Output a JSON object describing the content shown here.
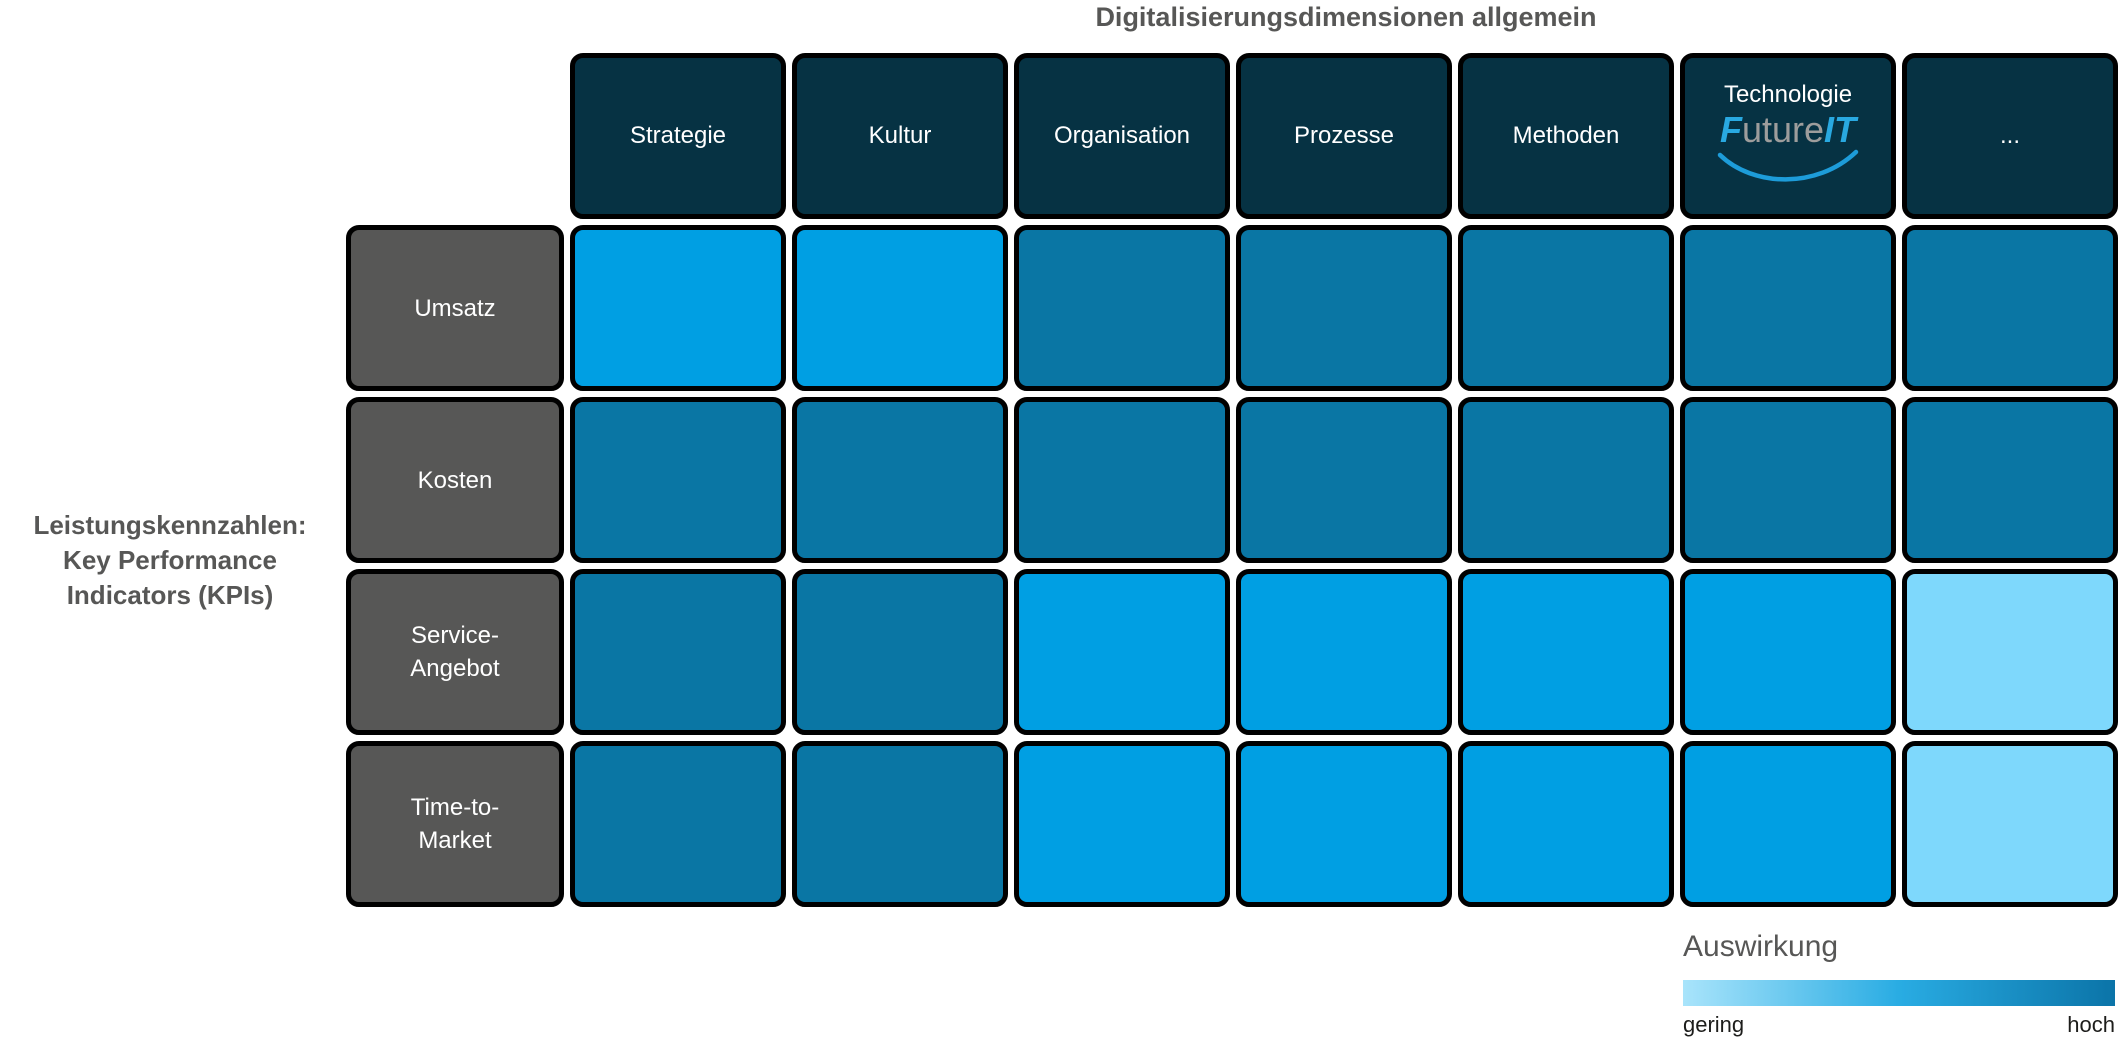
{
  "title": "Digitalisierungsdimensionen allgemein",
  "left_axis_label": {
    "lines": [
      "Leistungskennzahlen:",
      "Key Performance",
      "Indicators (KPIs)"
    ]
  },
  "columns": [
    {
      "label": "Strategie"
    },
    {
      "label": "Kultur"
    },
    {
      "label": "Organisation"
    },
    {
      "label": "Prozesse"
    },
    {
      "label": "Methoden"
    },
    {
      "label": "Technologie",
      "logo": {
        "f": "F",
        "mid": "uture",
        "it": "IT"
      }
    },
    {
      "label": "..."
    }
  ],
  "rows": [
    {
      "label": "Umsatz",
      "lines": [
        "Umsatz"
      ]
    },
    {
      "label": "Kosten",
      "lines": [
        "Kosten"
      ]
    },
    {
      "label": "Service-Angebot",
      "lines": [
        "Service-",
        "Angebot"
      ]
    },
    {
      "label": "Time-to-Market",
      "lines": [
        "Time-to-",
        "Market"
      ]
    }
  ],
  "legend": {
    "title": "Auswirkung",
    "min_label": "gering",
    "max_label": "hoch",
    "gradient": [
      "#A9E4FB",
      "#29ACE3",
      "#0B74A8"
    ]
  },
  "colors": {
    "header_bg": "#063243",
    "row_label_bg": "#575756",
    "cell_border": "#000000",
    "title_text": "#575756",
    "logo_blue": "#29A9E1",
    "logo_gray": "#9D9D9C",
    "swoosh_blue": "#1D9CD9"
  },
  "chart_data": {
    "type": "heatmap",
    "title": "Digitalisierungsdimensionen allgemein",
    "row_axis_title": "Leistungskennzahlen: Key Performance Indicators (KPIs)",
    "columns": [
      "Strategie",
      "Kultur",
      "Organisation",
      "Prozesse",
      "Methoden",
      "Technologie",
      "..."
    ],
    "rows": [
      "Umsatz",
      "Kosten",
      "Service-Angebot",
      "Time-to-Market"
    ],
    "values_levels": [
      [
        "mittel",
        "mittel",
        "hoch",
        "hoch",
        "hoch",
        "hoch",
        "hoch"
      ],
      [
        "hoch",
        "hoch",
        "hoch",
        "hoch",
        "hoch",
        "hoch",
        "hoch"
      ],
      [
        "hoch",
        "hoch",
        "mittel",
        "mittel",
        "mittel",
        "mittel",
        "gering"
      ],
      [
        "hoch",
        "hoch",
        "mittel",
        "mittel",
        "mittel",
        "mittel",
        "gering"
      ]
    ],
    "level_values": {
      "gering": 1,
      "mittel": 2,
      "hoch": 3
    },
    "level_colors": {
      "gering": "#7ED8FC",
      "mittel": "#009FE3",
      "hoch": "#0A76A4"
    },
    "legend": {
      "title": "Auswirkung",
      "min_label": "gering",
      "max_label": "hoch",
      "position": "bottom-right"
    },
    "grid": "off"
  }
}
